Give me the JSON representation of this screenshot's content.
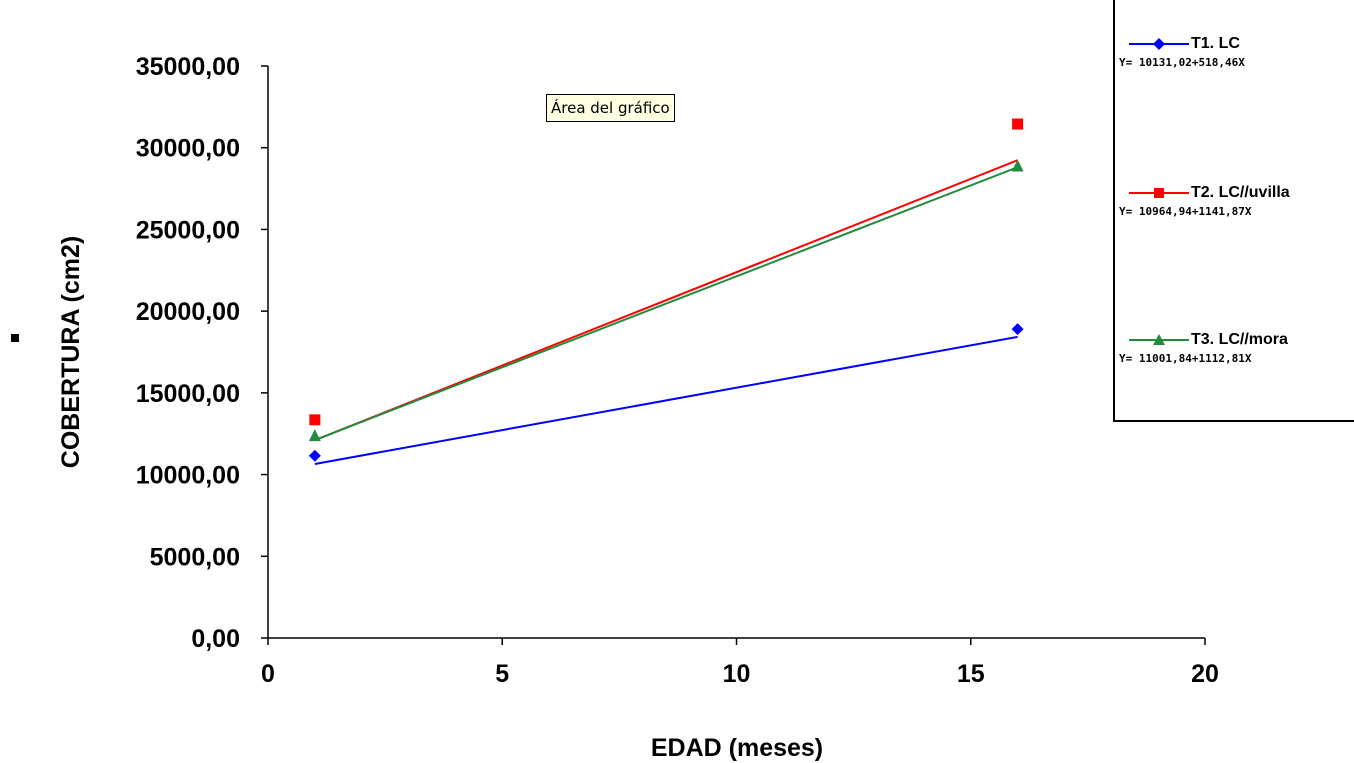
{
  "chart_data": {
    "type": "scatter",
    "xlabel": "EDAD (meses)",
    "ylabel": "COBERTURA (cm2)",
    "xlim": [
      0,
      20
    ],
    "ylim": [
      0,
      35000
    ],
    "x_ticks": [
      "0",
      "5",
      "10",
      "15",
      "20"
    ],
    "y_ticks": [
      "0,00",
      "5000,00",
      "10000,00",
      "15000,00",
      "20000,00",
      "25000,00",
      "30000,00",
      "35000,00"
    ],
    "grid": false,
    "legend_position": "top-right",
    "series": [
      {
        "name": "T1. LC",
        "equation": "Y= 10131,02+518,46X",
        "color": "#0000ff",
        "marker": "diamond",
        "points": [
          [
            1,
            11150
          ],
          [
            16,
            18900
          ]
        ],
        "trendline": [
          [
            1,
            10649.48
          ],
          [
            16,
            18426.38
          ]
        ]
      },
      {
        "name": "T2. LC//uvilla",
        "equation": "Y= 10964,94+1141,87X",
        "color": "#ff0000",
        "marker": "square",
        "points": [
          [
            1,
            13350
          ],
          [
            16,
            31450
          ]
        ],
        "trendline": [
          [
            1,
            12106.81
          ],
          [
            16,
            29234.86
          ]
        ]
      },
      {
        "name": "T3. LC//mora",
        "equation": "Y= 11001,84+1112,81X",
        "color": "#228b3c",
        "marker": "triangle",
        "points": [
          [
            1,
            12350
          ],
          [
            16,
            28850
          ]
        ],
        "trendline": [
          [
            1,
            12114.65
          ],
          [
            16,
            28806.8
          ]
        ]
      }
    ]
  },
  "tooltip_text": "Área del gráfico"
}
